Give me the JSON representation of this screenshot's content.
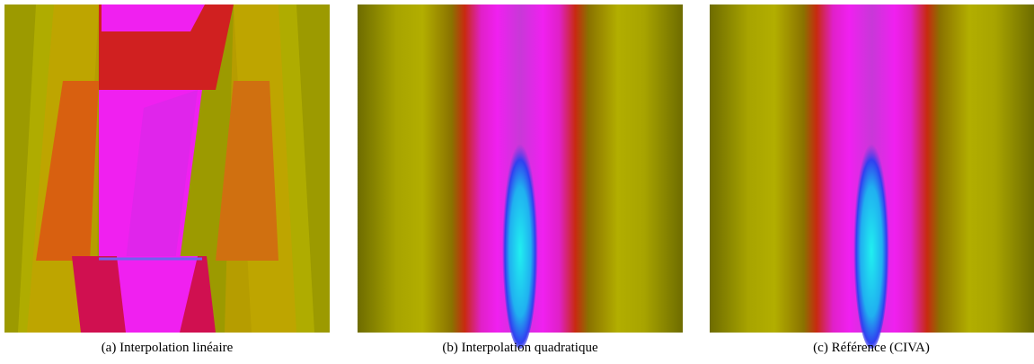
{
  "figure": {
    "panels": [
      {
        "caption": "(a) Interpolation linéaire"
      },
      {
        "caption": "(b) Interpolation quadratique"
      },
      {
        "caption": "(c) Référence (CIVA)"
      }
    ]
  }
}
